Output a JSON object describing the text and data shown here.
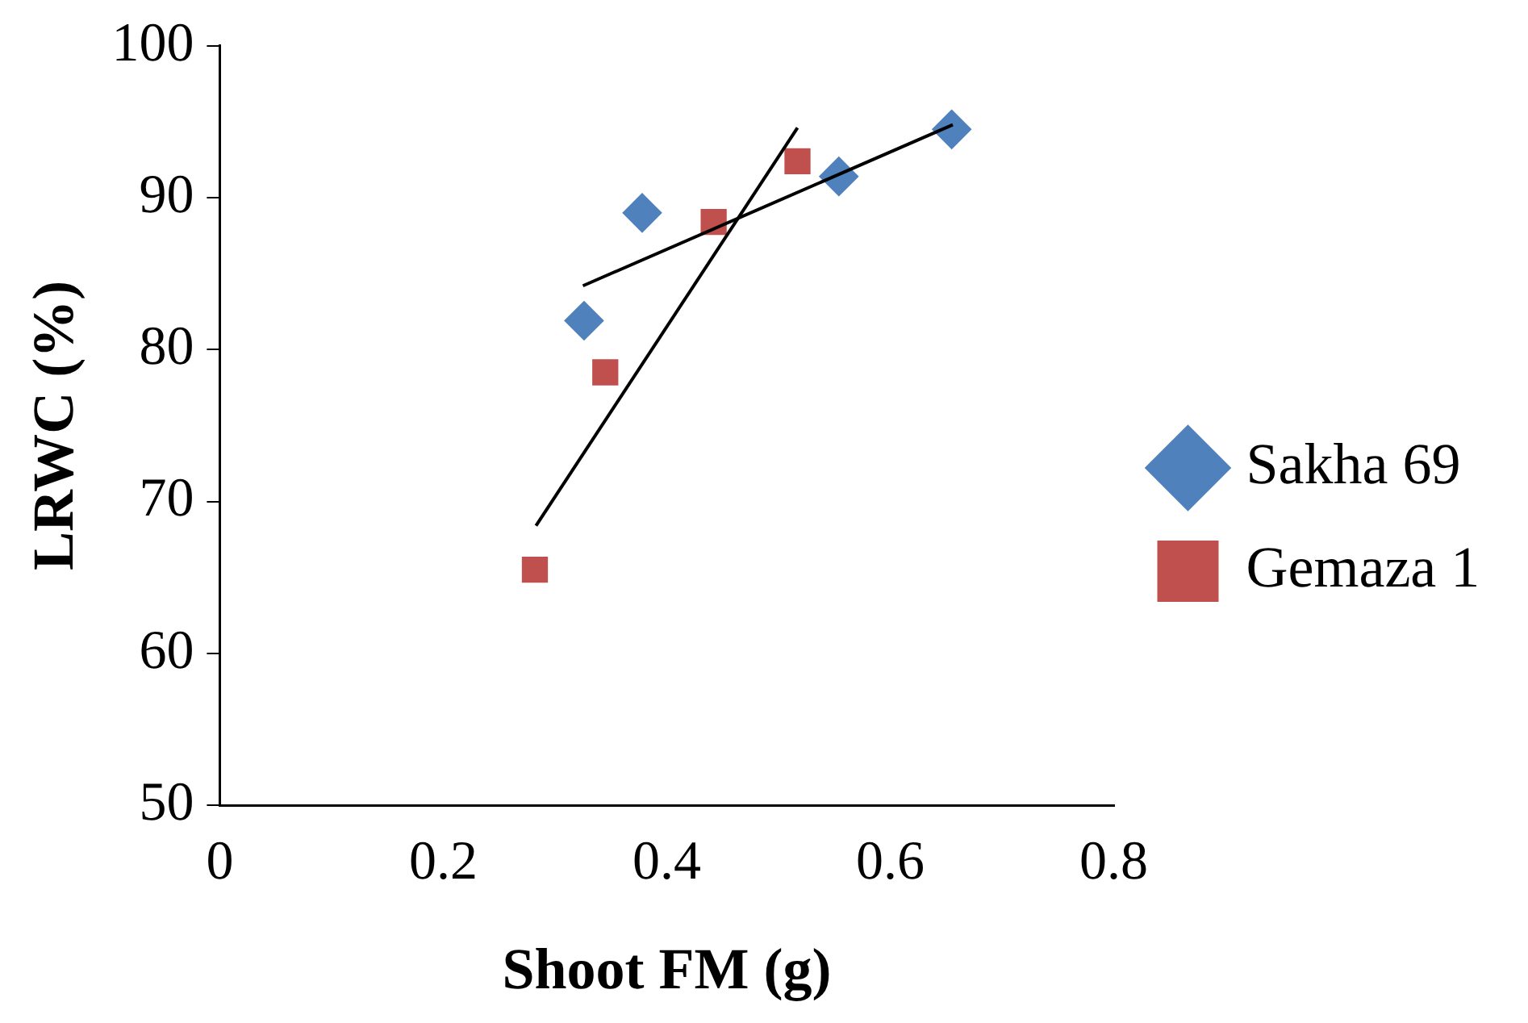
{
  "chart_data": {
    "type": "scatter",
    "xlabel": "Shoot FM (g)",
    "ylabel": "LRWC (%)",
    "xlim": [
      0,
      0.8
    ],
    "xticks": [
      0,
      0.2,
      0.4,
      0.6,
      0.8
    ],
    "ylim": [
      50,
      100
    ],
    "yticks": [
      50,
      60,
      70,
      80,
      90,
      100
    ],
    "grid": false,
    "legend": "right",
    "series": [
      {
        "name": "Sakha 69",
        "color": "#4f81bd",
        "marker": "diamond",
        "x": [
          0.326,
          0.378,
          0.554,
          0.655
        ],
        "values": [
          81.9,
          89.0,
          91.4,
          94.5
        ]
      },
      {
        "name": "Gemaza 1",
        "color": "#c0504d",
        "marker": "square",
        "x": [
          0.282,
          0.345,
          0.442,
          0.517
        ],
        "values": [
          65.5,
          78.5,
          88.4,
          92.4
        ]
      },
      {
        "type": "line",
        "color": "#000000",
        "marker": "none",
        "x": [
          0.325,
          0.656
        ],
        "values": [
          84.2,
          94.8
        ]
      },
      {
        "type": "line",
        "color": "#000000",
        "marker": "none",
        "x": [
          0.283,
          0.517
        ],
        "values": [
          68.4,
          94.6
        ]
      }
    ]
  }
}
